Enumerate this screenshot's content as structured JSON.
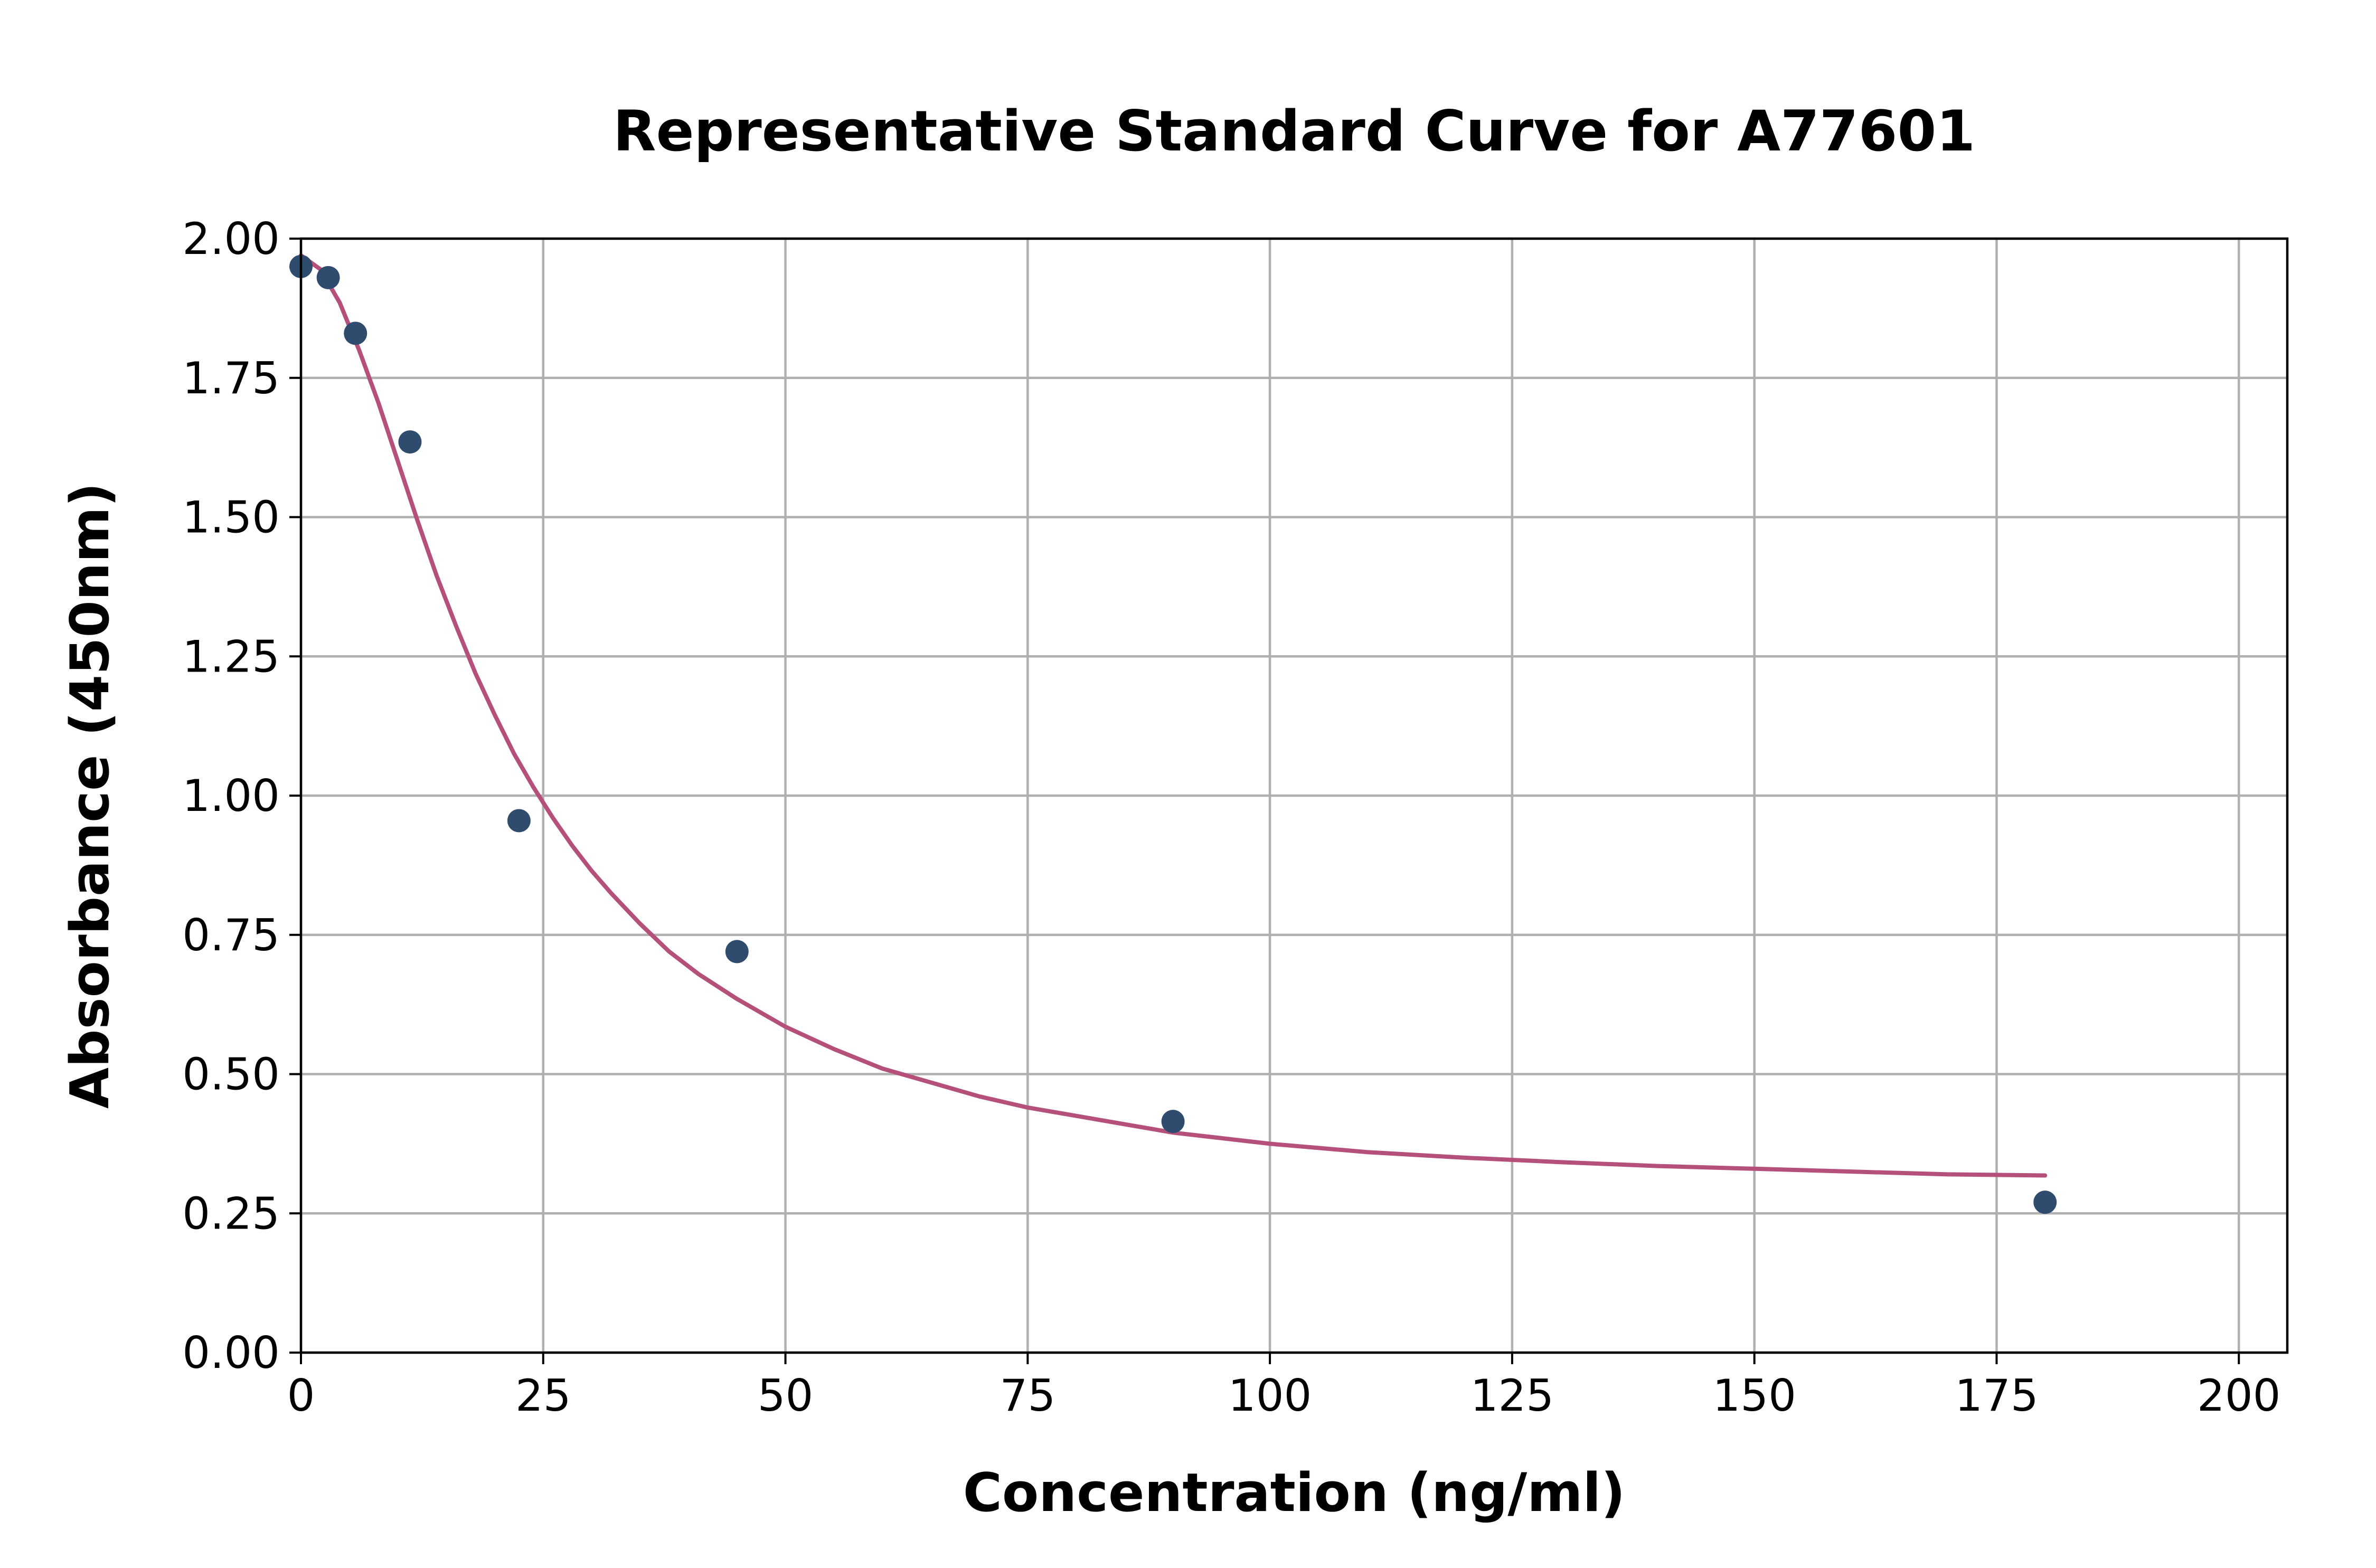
{
  "chart_data": {
    "type": "scatter",
    "title": "Representative Standard Curve for A77601",
    "xlabel": "Concentration (ng/ml)",
    "ylabel": "Absorbance (450nm)",
    "xlim": [
      0,
      205
    ],
    "ylim": [
      0,
      2.0
    ],
    "x_ticks": [
      0,
      25,
      50,
      75,
      100,
      125,
      150,
      175,
      200
    ],
    "x_tick_labels": [
      "0",
      "25",
      "50",
      "75",
      "100",
      "125",
      "150",
      "175",
      "200"
    ],
    "y_ticks": [
      0,
      0.25,
      0.5,
      0.75,
      1.0,
      1.25,
      1.5,
      1.75,
      2.0
    ],
    "y_tick_labels": [
      "0.00",
      "0.25",
      "0.50",
      "0.75",
      "1.00",
      "1.25",
      "1.50",
      "1.75",
      "2.00"
    ],
    "grid": true,
    "series": [
      {
        "kind": "points",
        "color": "#2f4b6e",
        "x": [
          0,
          2.8125,
          5.625,
          11.25,
          22.5,
          45,
          90,
          180
        ],
        "y": [
          1.95,
          1.93,
          1.83,
          1.635,
          0.955,
          0.72,
          0.415,
          0.27
        ]
      },
      {
        "kind": "fit-curve",
        "color": "#b5507a",
        "x": [
          0,
          2,
          4,
          6,
          8,
          10,
          12,
          14,
          16,
          18,
          20,
          22,
          24,
          26,
          28,
          30,
          32,
          35,
          38,
          41,
          45,
          50,
          55,
          60,
          65,
          70,
          75,
          80,
          90,
          100,
          110,
          120,
          130,
          140,
          150,
          160,
          170,
          180
        ],
        "y": [
          1.97,
          1.945,
          1.885,
          1.8,
          1.705,
          1.6,
          1.495,
          1.395,
          1.305,
          1.22,
          1.145,
          1.075,
          1.015,
          0.96,
          0.91,
          0.865,
          0.825,
          0.77,
          0.72,
          0.68,
          0.635,
          0.585,
          0.545,
          0.51,
          0.485,
          0.46,
          0.44,
          0.425,
          0.395,
          0.375,
          0.36,
          0.35,
          0.342,
          0.335,
          0.33,
          0.325,
          0.32,
          0.318
        ]
      }
    ]
  }
}
